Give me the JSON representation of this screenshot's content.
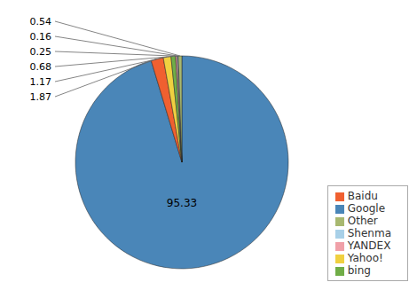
{
  "chart_data": {
    "type": "pie",
    "categories": [
      "Google",
      "Baidu",
      "Yahoo!",
      "bing",
      "YANDEX",
      "Shenma",
      "Other"
    ],
    "values": [
      95.33,
      1.87,
      1.17,
      0.68,
      0.25,
      0.16,
      0.54
    ],
    "colors": [
      "#4a86b8",
      "#f06030",
      "#f0d040",
      "#70ad47",
      "#f0a0a8",
      "#a8d0e8",
      "#a8b870"
    ],
    "data_labels": true,
    "legend": "lower right"
  }
}
